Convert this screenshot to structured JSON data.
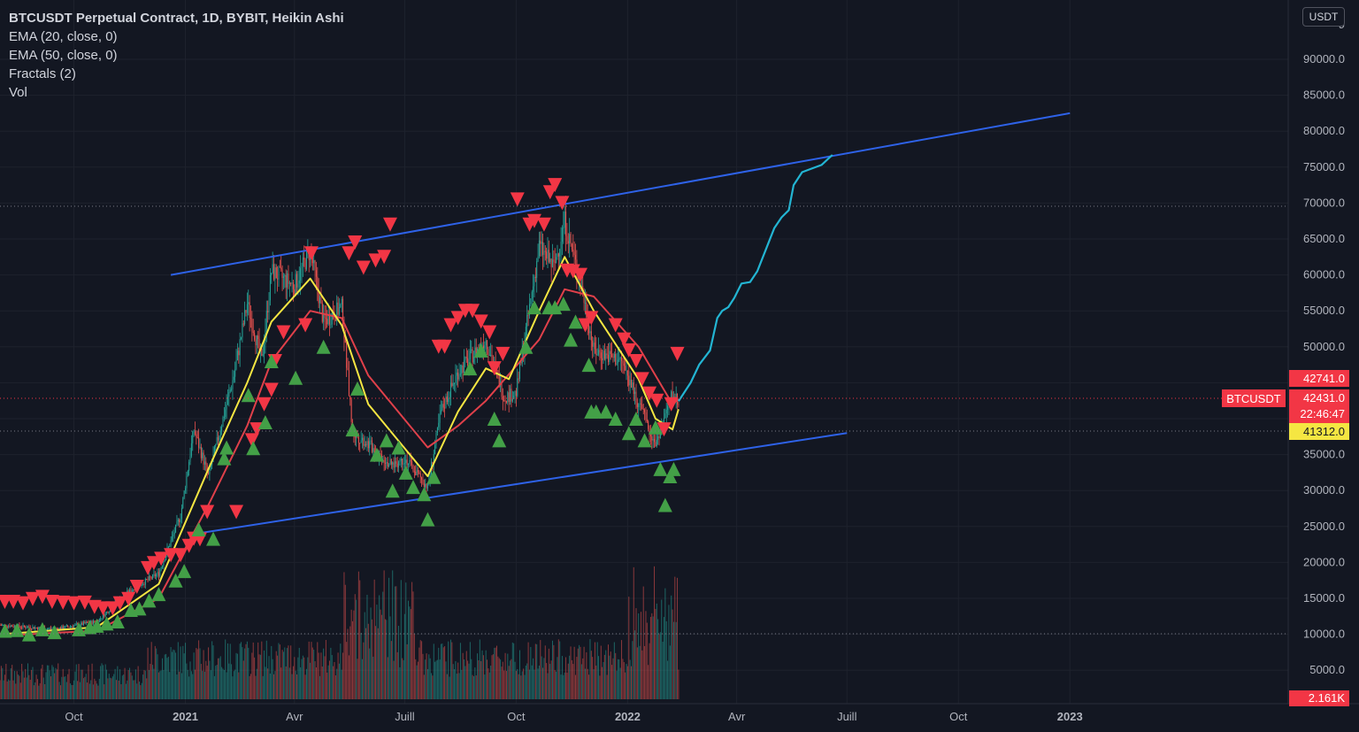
{
  "legend": {
    "title": "BTCUSDT Perpetual Contract, 1D, BYBIT, Heikin Ashi",
    "items": [
      "EMA (20, close, 0)",
      "EMA (50, close, 0)",
      "Fractals (2)",
      "Vol"
    ]
  },
  "currency_button": "USDT",
  "colors": {
    "background": "#131722",
    "up": "#26a69a",
    "down": "#ef5350",
    "ema20": "#f5e642",
    "ema50": "#e0404a",
    "channel": "#2e62e8",
    "projection": "#23b5d3",
    "fractal_up": "#43a047",
    "fractal_down": "#f23645",
    "last_price": "#f23645",
    "highlight": "#f5e642"
  },
  "price_badges": {
    "high": "42741.0",
    "symbol": "BTCUSDT",
    "last": "42431.0",
    "countdown": "22:46:47",
    "ema": "41312.0",
    "volume": "2.161K"
  },
  "chart_data": {
    "type": "candlestick",
    "title": "BTCUSDT Perpetual Contract, 1D, BYBIT, Heikin Ashi",
    "x_ticks": [
      "Oct",
      "2021",
      "Avr",
      "Juill",
      "Oct",
      "2022",
      "Avr",
      "Juill",
      "Oct",
      "2023"
    ],
    "y_ticks": [
      5000,
      10000,
      15000,
      20000,
      25000,
      30000,
      35000,
      40000,
      45000,
      50000,
      55000,
      60000,
      65000,
      70000,
      75000,
      80000,
      85000,
      90000
    ],
    "y_tick_labels": [
      "5000.0",
      "10000.0",
      "15000.0",
      "20000.0",
      "25000.0",
      "30000.0",
      "35000.0",
      "40000.0",
      "45000.0",
      "50000.0",
      "55000.0",
      "60000.0",
      "65000.0",
      "70000.0",
      "75000.0",
      "80000.0",
      "85000.0",
      "90000.0"
    ],
    "ylim": [
      -1000,
      98500
    ],
    "price_key_dates": [
      "2020-08-01",
      "2020-09-15",
      "2020-10-20",
      "2020-11-15",
      "2020-12-10",
      "2020-12-28",
      "2021-01-08",
      "2021-01-20",
      "2021-02-10",
      "2021-02-21",
      "2021-03-05",
      "2021-03-13",
      "2021-04-01",
      "2021-04-14",
      "2021-04-25",
      "2021-05-10",
      "2021-05-19",
      "2021-06-01",
      "2021-06-20",
      "2021-07-01",
      "2021-07-20",
      "2021-07-31",
      "2021-08-14",
      "2021-09-06",
      "2021-09-21",
      "2021-10-01",
      "2021-10-20",
      "2021-11-01",
      "2021-11-10",
      "2021-11-25",
      "2021-12-04",
      "2021-12-27",
      "2022-01-10",
      "2022-01-24",
      "2022-02-07",
      "2022-02-12"
    ],
    "price_key_values": [
      11300,
      10700,
      11800,
      15900,
      18500,
      26500,
      38500,
      32000,
      46000,
      56000,
      48000,
      60500,
      58500,
      63500,
      53500,
      55500,
      38000,
      36500,
      33500,
      34500,
      30500,
      41000,
      46500,
      51000,
      43000,
      43600,
      64000,
      61000,
      67500,
      57500,
      49500,
      48000,
      42000,
      36500,
      43500,
      42431
    ],
    "ema20_key_dates": [
      "2020-08-01",
      "2020-10-20",
      "2020-12-10",
      "2021-01-20",
      "2021-02-21",
      "2021-03-13",
      "2021-04-14",
      "2021-05-10",
      "2021-06-01",
      "2021-07-20",
      "2021-08-14",
      "2021-09-06",
      "2021-09-25",
      "2021-10-20",
      "2021-11-10",
      "2021-12-04",
      "2022-01-10",
      "2022-01-24",
      "2022-02-07",
      "2022-02-12"
    ],
    "ema20_key_values": [
      10000,
      11000,
      17000,
      33000,
      45000,
      53500,
      59500,
      53000,
      42000,
      32000,
      41000,
      47000,
      45500,
      55000,
      62500,
      55000,
      45500,
      40000,
      38500,
      41312
    ],
    "ema50_key_dates": [
      "2020-08-01",
      "2020-10-20",
      "2020-12-10",
      "2021-01-20",
      "2021-02-21",
      "2021-03-13",
      "2021-04-14",
      "2021-05-10",
      "2021-06-01",
      "2021-07-20",
      "2021-08-14",
      "2021-09-06",
      "2021-10-20",
      "2021-11-10",
      "2021-12-04",
      "2022-01-10",
      "2022-02-07",
      "2022-02-12"
    ],
    "ema50_key_values": [
      9800,
      10500,
      15000,
      28000,
      39000,
      48000,
      55000,
      54000,
      46000,
      36000,
      39000,
      42500,
      51000,
      58000,
      57000,
      50000,
      42000,
      42741
    ],
    "channel_upper": [
      {
        "date": "2020-12-20",
        "value": 60000
      },
      {
        "date": "2023-01-01",
        "value": 82500
      }
    ],
    "channel_lower": [
      {
        "date": "2021-01-10",
        "value": 24000
      },
      {
        "date": "2022-07-01",
        "value": 38000
      }
    ],
    "projection_dates": [
      "2022-02-12",
      "2022-02-22",
      "2022-03-01",
      "2022-03-10",
      "2022-03-16",
      "2022-03-20",
      "2022-03-25",
      "2022-03-30",
      "2022-04-05",
      "2022-04-12",
      "2022-04-18",
      "2022-04-25",
      "2022-05-02",
      "2022-05-08",
      "2022-05-14",
      "2022-05-18",
      "2022-05-25",
      "2022-06-02",
      "2022-06-10",
      "2022-06-19"
    ],
    "projection_values": [
      42431,
      45000,
      47500,
      49500,
      54000,
      55000,
      55500,
      56800,
      58800,
      59000,
      60500,
      63500,
      66500,
      68000,
      69000,
      72500,
      74300,
      74800,
      75300,
      76700
    ],
    "fractals_down_dates": [
      "2020-08-05",
      "2020-08-12",
      "2020-08-20",
      "2020-08-28",
      "2020-09-05",
      "2020-09-13",
      "2020-09-22",
      "2020-10-01",
      "2020-10-10",
      "2020-10-18",
      "2020-10-25",
      "2020-11-02",
      "2020-11-08",
      "2020-11-15",
      "2020-11-22",
      "2020-12-01",
      "2020-12-06",
      "2020-12-12",
      "2020-12-20",
      "2020-12-28",
      "2021-01-04",
      "2021-01-08",
      "2021-01-13",
      "2021-01-19",
      "2021-02-12",
      "2021-02-25",
      "2021-03-01",
      "2021-03-07",
      "2021-03-13",
      "2021-03-16",
      "2021-03-23",
      "2021-04-10",
      "2021-04-15",
      "2021-05-16",
      "2021-05-21",
      "2021-05-28",
      "2021-06-07",
      "2021-06-14",
      "2021-06-19",
      "2021-07-29",
      "2021-08-03",
      "2021-08-08",
      "2021-08-14",
      "2021-08-20",
      "2021-08-26",
      "2021-09-02",
      "2021-09-09",
      "2021-09-13",
      "2021-09-20",
      "2021-10-02",
      "2021-10-12",
      "2021-10-16",
      "2021-10-24",
      "2021-10-29",
      "2021-11-02",
      "2021-11-08",
      "2021-11-12",
      "2021-11-17",
      "2021-11-23",
      "2021-11-27",
      "2021-12-02",
      "2021-12-22",
      "2021-12-29",
      "2022-01-02",
      "2022-01-08",
      "2022-01-13",
      "2022-01-19",
      "2022-01-25",
      "2022-01-31",
      "2022-02-06",
      "2022-02-11"
    ],
    "fractals_down_values": [
      14500,
      14500,
      14300,
      14900,
      15200,
      14500,
      14400,
      14300,
      14400,
      13800,
      13600,
      13600,
      14300,
      14900,
      16600,
      19200,
      19900,
      20500,
      21000,
      21000,
      22300,
      23300,
      23200,
      27000,
      27000,
      37000,
      38500,
      42000,
      44000,
      48000,
      52000,
      53000,
      63000,
      63000,
      64500,
      61000,
      62000,
      62500,
      67000,
      50000,
      50000,
      53000,
      54000,
      55000,
      55000,
      53500,
      52000,
      47000,
      49000,
      70500,
      67000,
      67500,
      67000,
      71500,
      72500,
      70000,
      60600,
      60500,
      60000,
      53000,
      54000,
      53000,
      51000,
      49500,
      48000,
      45500,
      43500,
      42500,
      38500,
      42000,
      49000
    ],
    "fractals_up_dates": [
      "2020-08-05",
      "2020-08-15",
      "2020-08-25",
      "2020-09-05",
      "2020-09-15",
      "2020-10-05",
      "2020-10-14",
      "2020-10-20",
      "2020-10-28",
      "2020-11-06",
      "2020-11-17",
      "2020-11-24",
      "2020-12-02",
      "2020-12-10",
      "2020-12-24",
      "2020-12-31",
      "2021-01-12",
      "2021-01-24",
      "2021-02-02",
      "2021-02-04",
      "2021-02-22",
      "2021-02-26",
      "2021-03-08",
      "2021-03-13",
      "2021-04-02",
      "2021-04-25",
      "2021-05-19",
      "2021-05-23",
      "2021-06-08",
      "2021-06-16",
      "2021-06-21",
      "2021-06-26",
      "2021-07-02",
      "2021-07-08",
      "2021-07-17",
      "2021-07-20",
      "2021-07-25",
      "2021-08-24",
      "2021-09-02",
      "2021-09-13",
      "2021-09-17",
      "2021-10-09",
      "2021-10-16",
      "2021-10-28",
      "2021-11-02",
      "2021-11-09",
      "2021-11-15",
      "2021-11-19",
      "2021-11-30",
      "2021-12-02",
      "2021-12-06",
      "2021-12-14",
      "2021-12-22",
      "2022-01-02",
      "2022-01-08",
      "2022-01-15",
      "2022-01-24",
      "2022-01-28",
      "2022-02-01",
      "2022-02-05",
      "2022-02-08"
    ],
    "fractals_up_values": [
      10500,
      10600,
      10000,
      10700,
      10300,
      10700,
      11000,
      11200,
      11500,
      11800,
      13400,
      13600,
      14700,
      15600,
      17500,
      18800,
      24600,
      23300,
      34500,
      36000,
      43300,
      35900,
      39500,
      48000,
      45700,
      50000,
      38500,
      44200,
      35000,
      37000,
      30000,
      36000,
      32500,
      30500,
      29500,
      26000,
      31900,
      47000,
      49500,
      40000,
      37000,
      50000,
      55500,
      55500,
      55500,
      56000,
      51000,
      53500,
      47500,
      41000,
      41000,
      41000,
      40000,
      38000,
      40000,
      37000,
      38800,
      33000,
      28000,
      32000,
      33000
    ],
    "volume_note": "daily volume bars; highest volume near Jan 2022 and May-Jun 2021"
  }
}
